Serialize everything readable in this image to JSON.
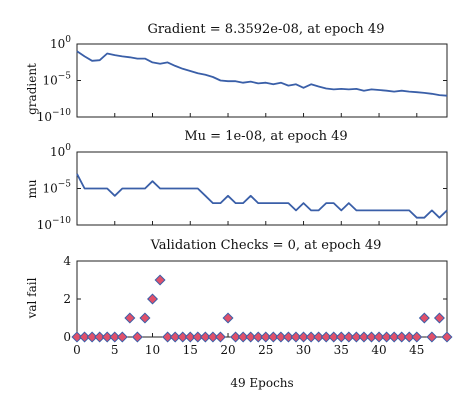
{
  "chart_data": [
    {
      "type": "line",
      "title": "Gradient = 8.3592e-08, at epoch 49",
      "xlabel": "",
      "ylabel": "gradient",
      "yscale": "log",
      "ylim": [
        1e-10,
        1
      ],
      "yticks": [
        {
          "value": 1,
          "base": "10",
          "exp": "0"
        },
        {
          "value": 1e-05,
          "base": "10",
          "exp": "−5"
        },
        {
          "value": 1e-10,
          "base": "10",
          "exp": "−10"
        }
      ],
      "xlim": [
        0,
        49
      ],
      "line_color": "#3a5fa8",
      "grid": false,
      "x": [
        0,
        1,
        2,
        3,
        4,
        5,
        6,
        7,
        8,
        9,
        10,
        11,
        12,
        13,
        14,
        15,
        16,
        17,
        18,
        19,
        20,
        21,
        22,
        23,
        24,
        25,
        26,
        27,
        28,
        29,
        30,
        31,
        32,
        33,
        34,
        35,
        36,
        37,
        38,
        39,
        40,
        41,
        42,
        43,
        44,
        45,
        46,
        47,
        48,
        49
      ],
      "y": [
        0.1,
        0.02,
        0.005,
        0.006,
        0.05,
        0.03,
        0.02,
        0.015,
        0.01,
        0.01,
        0.003,
        0.002,
        0.003,
        0.001,
        0.0004,
        0.0002,
        0.0001,
        6e-05,
        3e-05,
        1e-05,
        8e-06,
        8e-06,
        5e-06,
        7e-06,
        4e-06,
        5e-06,
        3e-06,
        5e-06,
        2e-06,
        3e-06,
        1e-06,
        3e-06,
        1.5e-06,
        8e-07,
        6e-07,
        7e-07,
        6e-07,
        7e-07,
        4e-07,
        6e-07,
        5e-07,
        4e-07,
        3e-07,
        4e-07,
        3e-07,
        2.5e-07,
        2e-07,
        1.5e-07,
        1e-07,
        8.4e-08
      ]
    },
    {
      "type": "line",
      "title": "Mu = 1e-08, at epoch 49",
      "xlabel": "",
      "ylabel": "mu",
      "yscale": "log",
      "ylim": [
        1e-10,
        1
      ],
      "yticks": [
        {
          "value": 1,
          "base": "10",
          "exp": "0"
        },
        {
          "value": 1e-05,
          "base": "10",
          "exp": "−5"
        },
        {
          "value": 1e-10,
          "base": "10",
          "exp": "−10"
        }
      ],
      "xlim": [
        0,
        49
      ],
      "line_color": "#3a5fa8",
      "grid": false,
      "x": [
        0,
        1,
        2,
        3,
        4,
        5,
        6,
        7,
        8,
        9,
        10,
        11,
        12,
        13,
        14,
        15,
        16,
        17,
        18,
        19,
        20,
        21,
        22,
        23,
        24,
        25,
        26,
        27,
        28,
        29,
        30,
        31,
        32,
        33,
        34,
        35,
        36,
        37,
        38,
        39,
        40,
        41,
        42,
        43,
        44,
        45,
        46,
        47,
        48,
        49
      ],
      "y": [
        0.001,
        1e-05,
        1e-05,
        1e-05,
        1e-05,
        1e-06,
        1e-05,
        1e-05,
        1e-05,
        1e-05,
        0.0001,
        1e-05,
        1e-05,
        1e-05,
        1e-05,
        1e-05,
        1e-05,
        1e-06,
        1e-07,
        1e-07,
        1e-06,
        1e-07,
        1e-07,
        1e-06,
        1e-07,
        1e-07,
        1e-07,
        1e-07,
        1e-07,
        1e-08,
        1e-07,
        1e-08,
        1e-08,
        1e-07,
        1e-07,
        1e-08,
        1e-07,
        1e-08,
        1e-08,
        1e-08,
        1e-08,
        1e-08,
        1e-08,
        1e-08,
        1e-08,
        1e-09,
        1e-09,
        1e-08,
        1e-09,
        1e-08
      ]
    },
    {
      "type": "scatter",
      "title": "Validation Checks = 0, at epoch 49",
      "xlabel": "49 Epochs",
      "ylabel": "val fail",
      "yscale": "linear",
      "ylim": [
        0,
        4
      ],
      "yticks": [
        {
          "value": 0,
          "label": "0"
        },
        {
          "value": 2,
          "label": "2"
        },
        {
          "value": 4,
          "label": "4"
        }
      ],
      "xlim": [
        0,
        49
      ],
      "xticks": [
        0,
        5,
        10,
        15,
        20,
        25,
        30,
        35,
        40,
        45
      ],
      "marker": "diamond",
      "marker_fill": "#e0506a",
      "marker_edge": "#3a5fa8",
      "grid": false,
      "x": [
        0,
        1,
        2,
        3,
        4,
        5,
        6,
        7,
        8,
        9,
        10,
        11,
        12,
        13,
        14,
        15,
        16,
        17,
        18,
        19,
        20,
        21,
        22,
        23,
        24,
        25,
        26,
        27,
        28,
        29,
        30,
        31,
        32,
        33,
        34,
        35,
        36,
        37,
        38,
        39,
        40,
        41,
        42,
        43,
        44,
        45,
        46,
        47,
        48,
        49
      ],
      "y": [
        0,
        0,
        0,
        0,
        0,
        0,
        0,
        1,
        0,
        1,
        2,
        3,
        0,
        0,
        0,
        0,
        0,
        0,
        0,
        0,
        1,
        0,
        0,
        0,
        0,
        0,
        0,
        0,
        0,
        0,
        0,
        0,
        0,
        0,
        0,
        0,
        0,
        0,
        0,
        0,
        0,
        0,
        0,
        0,
        0,
        0,
        1,
        0,
        1,
        0
      ]
    }
  ]
}
